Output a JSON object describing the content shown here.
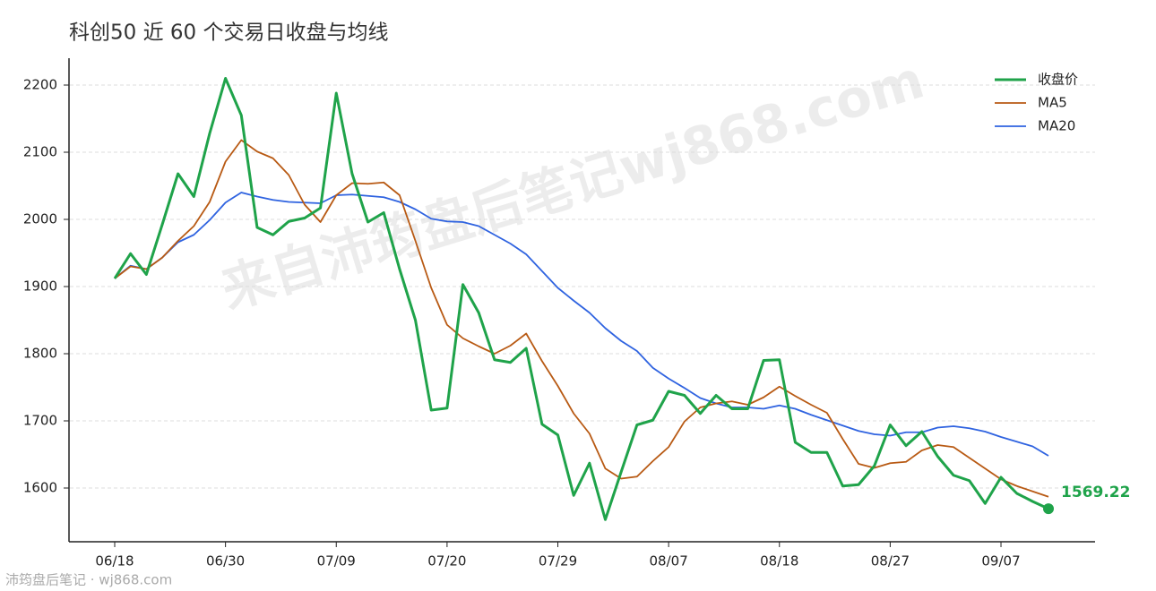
{
  "chart_data": {
    "type": "line",
    "title": "科创50 近 60 个交易日收盘与均线",
    "watermark": "来自沛筠盘后笔记wj868.com",
    "footer": "沛筠盘后笔记 · wj868.com",
    "categories": [
      "06/18",
      null,
      null,
      null,
      null,
      null,
      null,
      "06/30",
      null,
      null,
      null,
      null,
      null,
      null,
      "07/09",
      null,
      null,
      null,
      null,
      null,
      null,
      "07/20",
      null,
      null,
      null,
      null,
      null,
      null,
      "07/29",
      null,
      null,
      null,
      null,
      null,
      null,
      "08/07",
      null,
      null,
      null,
      null,
      null,
      null,
      "08/18",
      null,
      null,
      null,
      null,
      null,
      null,
      "08/27",
      null,
      null,
      null,
      null,
      null,
      null,
      "09/07",
      null,
      null,
      null
    ],
    "series": [
      {
        "name": "收盘价",
        "color": "#1fa34a",
        "width": 3,
        "values": [
          1912,
          1949,
          1918,
          1992,
          2068,
          2034,
          2128,
          2210,
          2155,
          1988,
          1977,
          1997,
          2002,
          2017,
          2188,
          2068,
          1996,
          2010,
          1926,
          1850,
          1716,
          1719,
          1903,
          1861,
          1791,
          1787,
          1808,
          1695,
          1679,
          1589,
          1637,
          1553,
          1624,
          1694,
          1701,
          1744,
          1738,
          1711,
          1738,
          1718,
          1718,
          1790,
          1791,
          1668,
          1653,
          1653,
          1603,
          1605,
          1633,
          1694,
          1663,
          1684,
          1647,
          1619,
          1611,
          1577,
          1616,
          1592,
          1580,
          1569.22
        ]
      },
      {
        "name": "MA5",
        "color": "#b85a14",
        "width": 1.8,
        "values": [
          1912,
          1930,
          1926,
          1943,
          1968,
          1990,
          2026,
          2086,
          2118,
          2101,
          2091,
          2066,
          2022,
          1996,
          2036,
          2054,
          2053,
          2055,
          2036,
          1968,
          1898,
          1843,
          1823,
          1811,
          1800,
          1812,
          1830,
          1789,
          1752,
          1711,
          1681,
          1629,
          1614,
          1617,
          1640,
          1661,
          1699,
          1720,
          1726,
          1729,
          1724,
          1735,
          1751,
          1737,
          1724,
          1712,
          1673,
          1636,
          1630,
          1637,
          1639,
          1656,
          1664,
          1661,
          1645,
          1629,
          1613,
          1603,
          1595,
          1587
        ]
      },
      {
        "name": "MA20",
        "color": "#2f63e0",
        "width": 1.8,
        "values": [
          1912,
          1931,
          1926,
          1943,
          1966,
          1977,
          1999,
          2025,
          2040,
          2034,
          2029,
          2026,
          2025,
          2024,
          2036,
          2037,
          2035,
          2033,
          2026,
          2015,
          2001,
          1997,
          1996,
          1990,
          1977,
          1964,
          1948,
          1923,
          1898,
          1879,
          1861,
          1838,
          1819,
          1804,
          1779,
          1763,
          1749,
          1734,
          1726,
          1720,
          1720,
          1718,
          1723,
          1718,
          1709,
          1701,
          1693,
          1685,
          1680,
          1678,
          1683,
          1683,
          1690,
          1692,
          1689,
          1684,
          1676,
          1669,
          1662,
          1648
        ]
      }
    ],
    "ylim": [
      1520,
      2240
    ],
    "yticks": [
      1600,
      1700,
      1800,
      1900,
      2000,
      2100,
      2200
    ],
    "grid": true,
    "legend": "upper right"
  }
}
